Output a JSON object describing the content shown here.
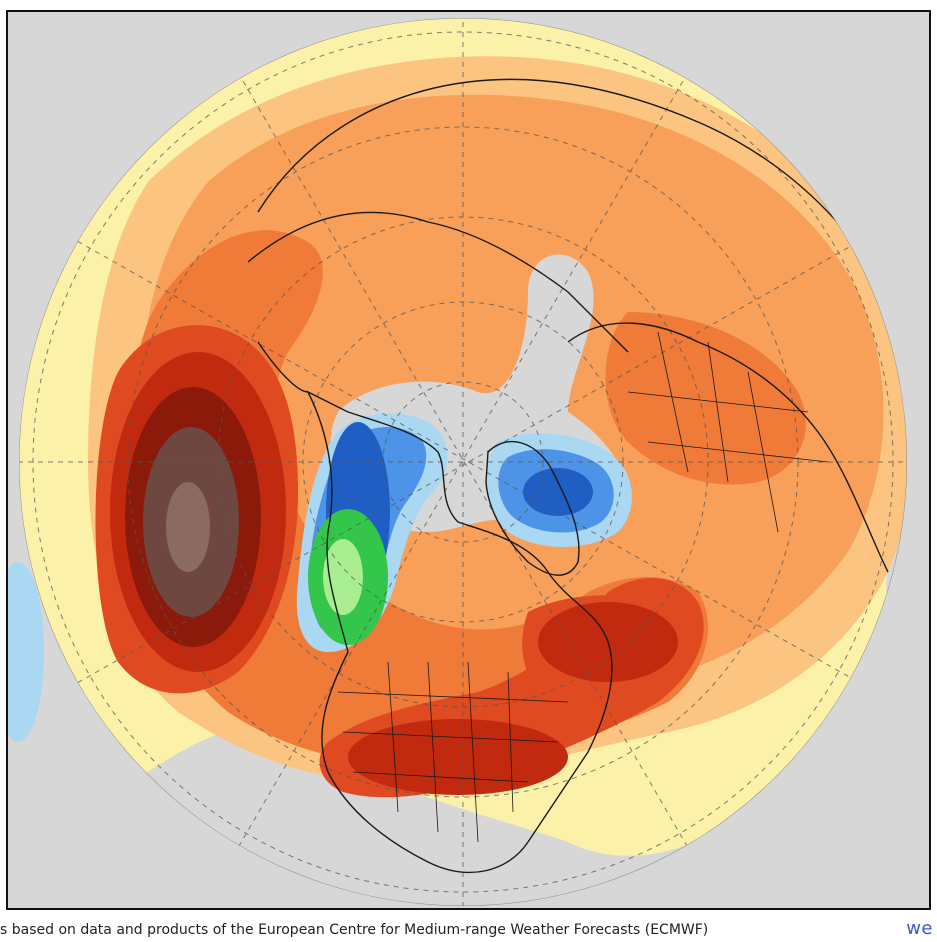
{
  "map": {
    "projection": "polar-stereographic-north",
    "colors": {
      "background_gray": "#d7d7d7",
      "pale_yellow": "#fcf1a8",
      "light_orange": "#fcc481",
      "orange": "#f8a05a",
      "dark_orange": "#f07a38",
      "red_orange": "#e04a20",
      "red": "#c22a10",
      "dark_red": "#8c1a0a",
      "brown": "#6e4740",
      "light_brown": "#8a6a62",
      "light_blue": "#aad7f2",
      "blue": "#4d93e8",
      "dark_blue": "#1f5fc4",
      "green": "#33c64a",
      "light_green": "#a8ee90"
    }
  },
  "footer": {
    "credit": "s based on data and products of the European Centre for Medium-range Weather Forecasts (ECMWF)",
    "brand": "we"
  }
}
